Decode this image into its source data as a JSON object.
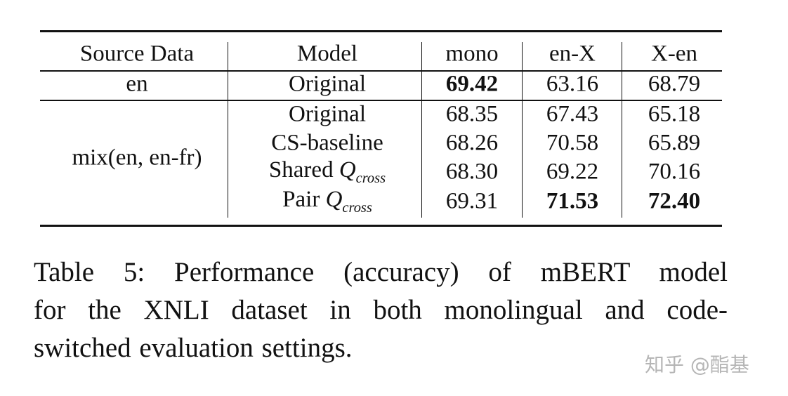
{
  "table": {
    "columns": [
      "Source Data",
      "Model",
      "mono",
      "en-X",
      "X-en"
    ],
    "groups": [
      {
        "source": "en",
        "rows": [
          {
            "model": {
              "text": "Original"
            },
            "scores": [
              {
                "text": "69.42",
                "bold": true
              },
              {
                "text": "63.16"
              },
              {
                "text": "68.79"
              }
            ]
          }
        ]
      },
      {
        "source": "mix(en, en-fr)",
        "rows": [
          {
            "model": {
              "text": "Original"
            },
            "scores": [
              {
                "text": "68.35"
              },
              {
                "text": "67.43"
              },
              {
                "text": "65.18"
              }
            ]
          },
          {
            "model": {
              "text": "CS-baseline"
            },
            "scores": [
              {
                "text": "68.26"
              },
              {
                "text": "70.58"
              },
              {
                "text": "65.89"
              }
            ]
          },
          {
            "model": {
              "text": "Shared",
              "math": "Q",
              "sub": "cross"
            },
            "scores": [
              {
                "text": "68.30"
              },
              {
                "text": "69.22"
              },
              {
                "text": "70.16"
              }
            ]
          },
          {
            "model": {
              "text": "Pair",
              "math": "Q",
              "sub": "cross"
            },
            "scores": [
              {
                "text": "69.31"
              },
              {
                "text": "71.53",
                "bold": true
              },
              {
                "text": "72.40",
                "bold": true
              }
            ]
          }
        ]
      }
    ]
  },
  "caption": {
    "lines": [
      "Table 5:  Performance (accuracy) of mBERT model",
      "for the XNLI dataset in both monolingual and code-",
      "switched evaluation settings."
    ]
  },
  "watermark": "知乎 @酯基"
}
